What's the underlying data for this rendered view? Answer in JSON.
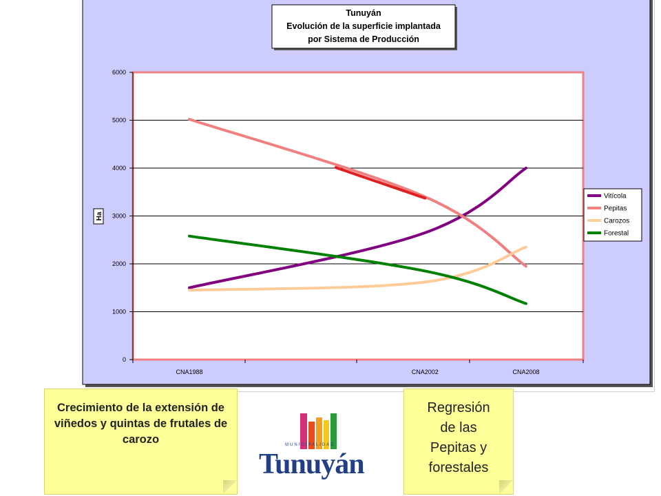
{
  "chart_data": {
    "type": "line",
    "title": [
      "Tunuyán",
      "Evolución de la superficie implantada",
      "por Sistema de Producción"
    ],
    "ylabel": "Ha",
    "xlabel": "",
    "categories": [
      "CNA1988",
      "CNA2002",
      "CNA2008"
    ],
    "x": [
      1988,
      2002,
      2008
    ],
    "ylim": [
      0,
      6000
    ],
    "yticks": [
      "0",
      "1000",
      "2000",
      "3000",
      "4000",
      "5000",
      "6000"
    ],
    "grid": true,
    "legend_position": "right",
    "series": [
      {
        "name": "Vitícola",
        "values": [
          1500,
          2650,
          4000
        ],
        "color": "#800080"
      },
      {
        "name": "Pepitas",
        "values": [
          5020,
          3400,
          1950
        ],
        "color": "#f08080"
      },
      {
        "name": "Carozos",
        "values": [
          1450,
          1620,
          2350
        ],
        "color": "#ffcc99"
      },
      {
        "name": "Forestal",
        "values": [
          2580,
          1850,
          1170
        ],
        "color": "#008000"
      }
    ],
    "highlight_color": "#e02020",
    "plot_background": "#ccccff"
  },
  "notes": {
    "left": "Crecimiento de la extensión de viñedos y quintas de frutales de carozo",
    "right_lines": [
      "Regresión",
      "de las",
      "Pepitas y",
      "forestales"
    ]
  },
  "logo": {
    "small": "MUNICIPALIDAD",
    "word": "Tunuyán",
    "colors": [
      "#d4307a",
      "#e84c1c",
      "#f0a020",
      "#2a9a3a"
    ]
  }
}
